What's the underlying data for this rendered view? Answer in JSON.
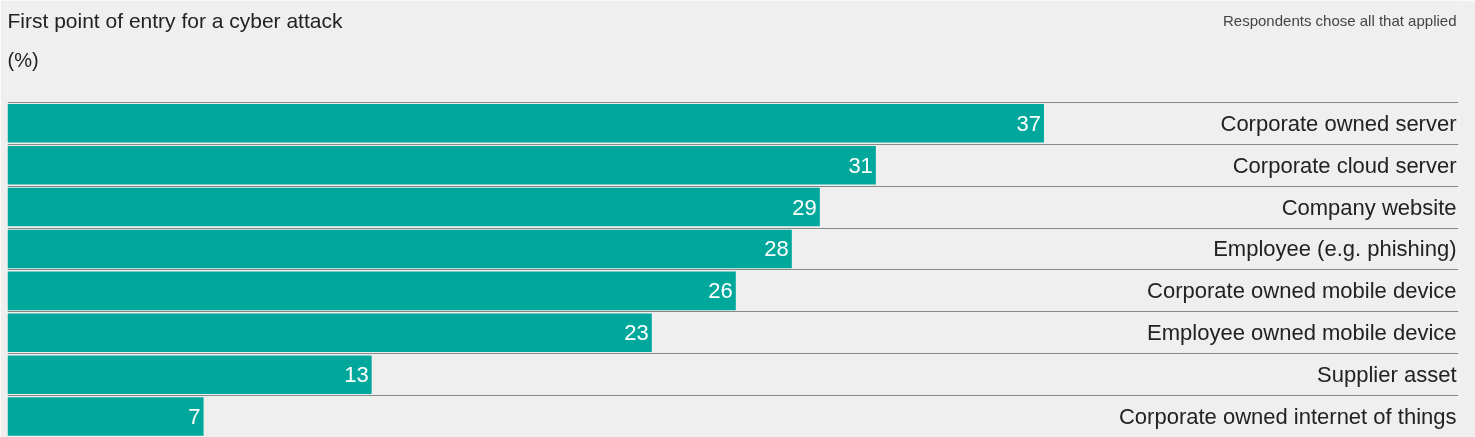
{
  "chart_data": {
    "type": "bar",
    "orientation": "horizontal",
    "title": "First point of entry for a cyber attack",
    "subtitle": "(%)",
    "annotations": [
      "Respondents chose all that applied"
    ],
    "categories": [
      "Corporate owned server",
      "Corporate cloud server",
      "Company website",
      "Employee (e.g. phishing)",
      "Corporate owned mobile device",
      "Employee owned mobile device",
      "Supplier asset",
      "Corporate owned internet of things"
    ],
    "values": [
      37,
      31,
      29,
      28,
      26,
      23,
      13,
      7
    ],
    "color": "#00a89c",
    "data_labels": true,
    "grid": "y",
    "legend": false
  }
}
